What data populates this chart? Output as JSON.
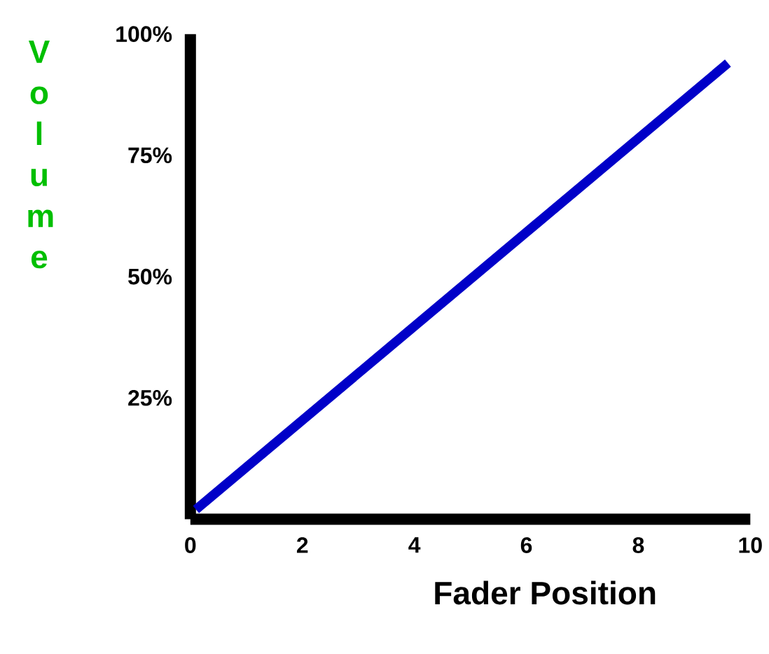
{
  "chart_data": {
    "type": "line",
    "xlabel": "Fader Position",
    "ylabel": "Volume",
    "x": [
      0.1,
      9.6
    ],
    "series": [
      {
        "color": "#0000c8",
        "values": [
          2,
          94
        ]
      }
    ],
    "xlim": [
      0,
      10
    ],
    "xticks": [
      0,
      2,
      4,
      6,
      8,
      10
    ],
    "ylim": [
      0,
      100
    ],
    "yticks": [
      {
        "value": 25,
        "label": "25%"
      },
      {
        "value": 50,
        "label": "50%"
      },
      {
        "value": 75,
        "label": "75%"
      },
      {
        "value": 100,
        "label": "100%"
      }
    ],
    "grid": false,
    "marker": "none",
    "line_style": "solid"
  }
}
